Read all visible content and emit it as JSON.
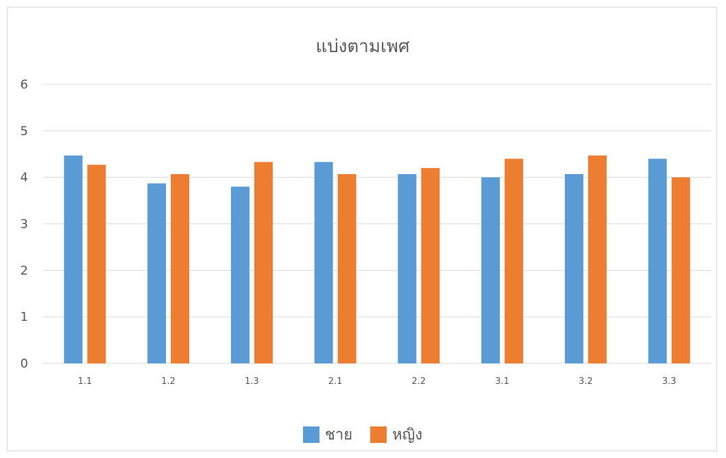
{
  "chart_data": {
    "type": "bar",
    "title": "แบ่งตามเพศ",
    "xlabel": "",
    "ylabel": "",
    "categories": [
      "1.1",
      "1.2",
      "1.3",
      "2.1",
      "2.2",
      "3.1",
      "3.2",
      "3.3"
    ],
    "series": [
      {
        "name": "ชาย",
        "color": "#5b9bd5",
        "values": [
          4.47,
          3.87,
          3.8,
          4.33,
          4.07,
          4.0,
          4.07,
          4.4
        ]
      },
      {
        "name": "หญิง",
        "color": "#ed7d31",
        "values": [
          4.27,
          4.07,
          4.33,
          4.07,
          4.2,
          4.4,
          4.47,
          4.0
        ]
      }
    ],
    "ylim": [
      0,
      6
    ],
    "yticks": [
      "0",
      "1",
      "2",
      "3",
      "4",
      "5",
      "6"
    ],
    "grid": true,
    "gridline_color": "#d9d9d9",
    "legend_position": "bottom"
  }
}
